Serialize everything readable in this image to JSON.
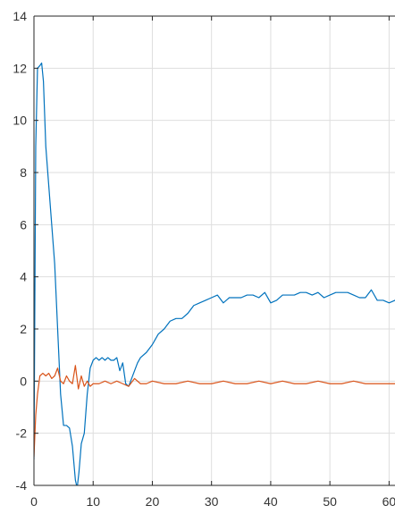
{
  "chart_data": {
    "type": "line",
    "title": "",
    "xlabel": "",
    "ylabel": "",
    "xlim": [
      0,
      61
    ],
    "ylim": [
      -4,
      14
    ],
    "grid": true,
    "x_ticks": [
      0,
      10,
      20,
      30,
      40,
      50,
      60
    ],
    "y_ticks": [
      -4,
      -2,
      0,
      2,
      4,
      6,
      8,
      10,
      12,
      14
    ],
    "x_tick_labels": [
      "0",
      "10",
      "20",
      "30",
      "40",
      "50",
      "60"
    ],
    "y_tick_labels": [
      "-4",
      "-2",
      "0",
      "2",
      "4",
      "6",
      "8",
      "10",
      "12",
      "14"
    ],
    "colors": {
      "series_1": "#0072BD",
      "series_2": "#D95319",
      "grid": "#DEDEDE",
      "axis": "#262626"
    },
    "series": [
      {
        "color": "#0072BD",
        "x": [
          0,
          0.3,
          0.6,
          1.0,
          1.3,
          1.6,
          2.0,
          2.5,
          3.0,
          3.5,
          4.0,
          4.5,
          5.0,
          5.5,
          6.0,
          6.5,
          7.0,
          7.3,
          7.6,
          8.0,
          8.5,
          9.0,
          9.5,
          10.0,
          10.5,
          11.0,
          11.5,
          12.0,
          12.5,
          13.0,
          13.5,
          14.0,
          14.5,
          15.0,
          15.5,
          16.0,
          16.5,
          17.0,
          17.5,
          18.0,
          19.0,
          20.0,
          21.0,
          22.0,
          23.0,
          24.0,
          25.0,
          26.0,
          27.0,
          28.0,
          29.0,
          30.0,
          31.0,
          32.0,
          33.0,
          34.0,
          35.0,
          36.0,
          37.0,
          38.0,
          39.0,
          40.0,
          41.0,
          42.0,
          43.0,
          44.0,
          45.0,
          46.0,
          47.0,
          48.0,
          49.0,
          50.0,
          51.0,
          52.0,
          53.0,
          54.0,
          55.0,
          56.0,
          57.0,
          58.0,
          59.0,
          60.0,
          61.0
        ],
        "y": [
          -3.0,
          9.0,
          12.0,
          12.1,
          12.2,
          11.5,
          9.0,
          7.5,
          6.0,
          4.5,
          2.0,
          -0.5,
          -1.7,
          -1.7,
          -1.8,
          -2.5,
          -3.8,
          -4.1,
          -3.5,
          -2.4,
          -2.0,
          -0.5,
          0.5,
          0.8,
          0.9,
          0.8,
          0.9,
          0.8,
          0.9,
          0.8,
          0.8,
          0.9,
          0.4,
          0.7,
          -0.1,
          -0.2,
          0.1,
          0.4,
          0.7,
          0.9,
          1.1,
          1.4,
          1.8,
          2.0,
          2.3,
          2.4,
          2.4,
          2.6,
          2.9,
          3.0,
          3.1,
          3.2,
          3.3,
          3.0,
          3.2,
          3.2,
          3.2,
          3.3,
          3.3,
          3.2,
          3.4,
          3.0,
          3.1,
          3.3,
          3.3,
          3.3,
          3.4,
          3.4,
          3.3,
          3.4,
          3.2,
          3.3,
          3.4,
          3.4,
          3.4,
          3.3,
          3.2,
          3.2,
          3.5,
          3.1,
          3.1,
          3.0,
          3.1
        ]
      },
      {
        "color": "#D95319",
        "x": [
          0,
          0.3,
          0.6,
          1.0,
          1.5,
          2.0,
          2.5,
          3.0,
          3.5,
          4.0,
          4.5,
          5.0,
          5.5,
          6.0,
          6.5,
          7.0,
          7.5,
          8.0,
          8.5,
          9.0,
          9.5,
          10.0,
          11.0,
          12.0,
          13.0,
          14.0,
          15.0,
          16.0,
          17.0,
          18.0,
          19.0,
          20.0,
          22.0,
          24.0,
          26.0,
          28.0,
          30.0,
          32.0,
          34.0,
          36.0,
          38.0,
          40.0,
          42.0,
          44.0,
          46.0,
          48.0,
          50.0,
          52.0,
          54.0,
          56.0,
          58.0,
          60.0,
          61.0
        ],
        "y": [
          -2.9,
          -1.3,
          -0.5,
          0.2,
          0.3,
          0.2,
          0.3,
          0.1,
          0.2,
          0.5,
          0.0,
          -0.1,
          0.2,
          0.0,
          -0.1,
          0.6,
          -0.3,
          0.2,
          -0.2,
          0.0,
          -0.2,
          -0.1,
          -0.1,
          0.0,
          -0.1,
          0.0,
          -0.1,
          -0.2,
          0.1,
          -0.1,
          -0.1,
          0.0,
          -0.1,
          -0.1,
          0.0,
          -0.1,
          -0.1,
          0.0,
          -0.1,
          -0.1,
          0.0,
          -0.1,
          0.0,
          -0.1,
          -0.1,
          0.0,
          -0.1,
          -0.1,
          0.0,
          -0.1,
          -0.1,
          -0.1,
          -0.1
        ]
      }
    ]
  }
}
